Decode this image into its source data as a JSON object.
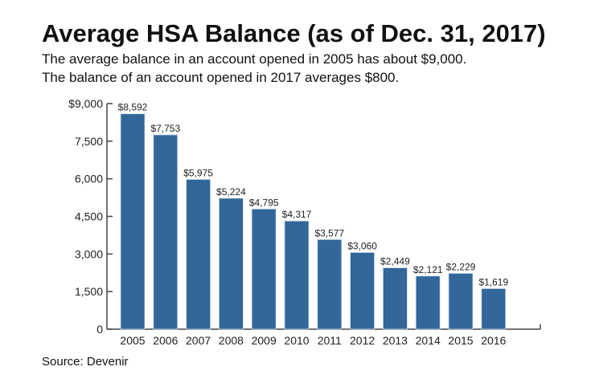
{
  "chart_data": {
    "type": "bar",
    "title": "Average HSA Balance (as of Dec. 31, 2017)",
    "subtitle": [
      "The average balance in an account opened in 2005 has about $9,000.",
      "The balance of an account opened in 2017 averages $800."
    ],
    "categories": [
      "2005",
      "2006",
      "2007",
      "2008",
      "2009",
      "2010",
      "2011",
      "2012",
      "2013",
      "2014",
      "2015",
      "2016"
    ],
    "values": [
      8592,
      7753,
      5975,
      5224,
      4795,
      4317,
      3577,
      3060,
      2449,
      2121,
      2229,
      1619
    ],
    "data_labels": [
      "$8,592",
      "$7,753",
      "$5,975",
      "$5,224",
      "$4,795",
      "$4,317",
      "$3,577",
      "$3,060",
      "$2,449",
      "$2,121",
      "$2,229",
      "$1,619"
    ],
    "yticks": [
      0,
      1500,
      3000,
      4500,
      6000,
      7500,
      9000
    ],
    "ytick_labels": [
      "0",
      "1,500",
      "3,000",
      "4,500",
      "6,000",
      "7,500",
      "$9,000"
    ],
    "ylim": [
      0,
      9000
    ],
    "xlabel": "",
    "ylabel": "",
    "grid": false,
    "bar_color": "#336699",
    "source": "Source: Devenir"
  }
}
